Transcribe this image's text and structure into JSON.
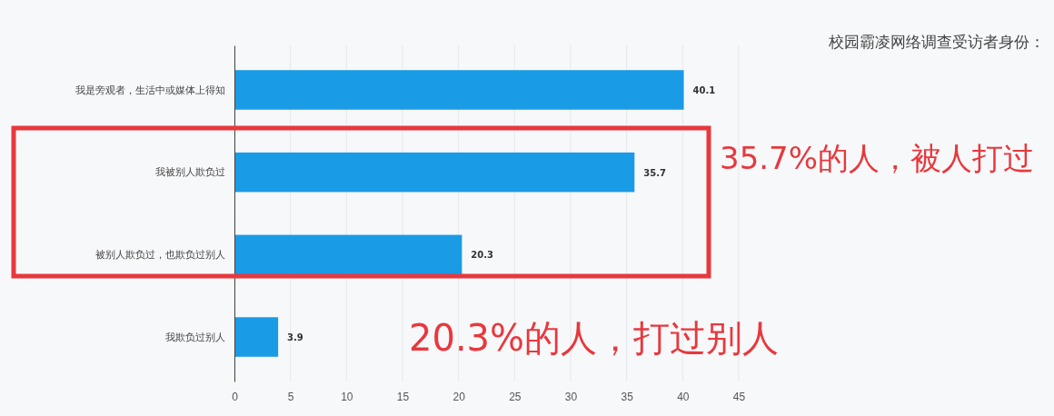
{
  "chart_data": {
    "type": "bar",
    "orientation": "horizontal",
    "title": "校园霸凌网络调查受访者身份：",
    "categories": [
      "我是旁观者，生活中或媒体上得知",
      "我被别人欺负过",
      "被别人欺负过，也欺负过别人",
      "我欺负过别人"
    ],
    "values": [
      40.1,
      35.7,
      20.3,
      3.9
    ],
    "color": "#1a9be6",
    "data_labels": true,
    "xlim": [
      0,
      45
    ],
    "xticks": [
      0,
      5,
      10,
      15,
      20,
      25,
      30,
      35,
      40,
      45
    ],
    "grid": "x",
    "annotations": [
      "35.7%的人，被人打过",
      "20.3%的人，打过别人"
    ]
  }
}
